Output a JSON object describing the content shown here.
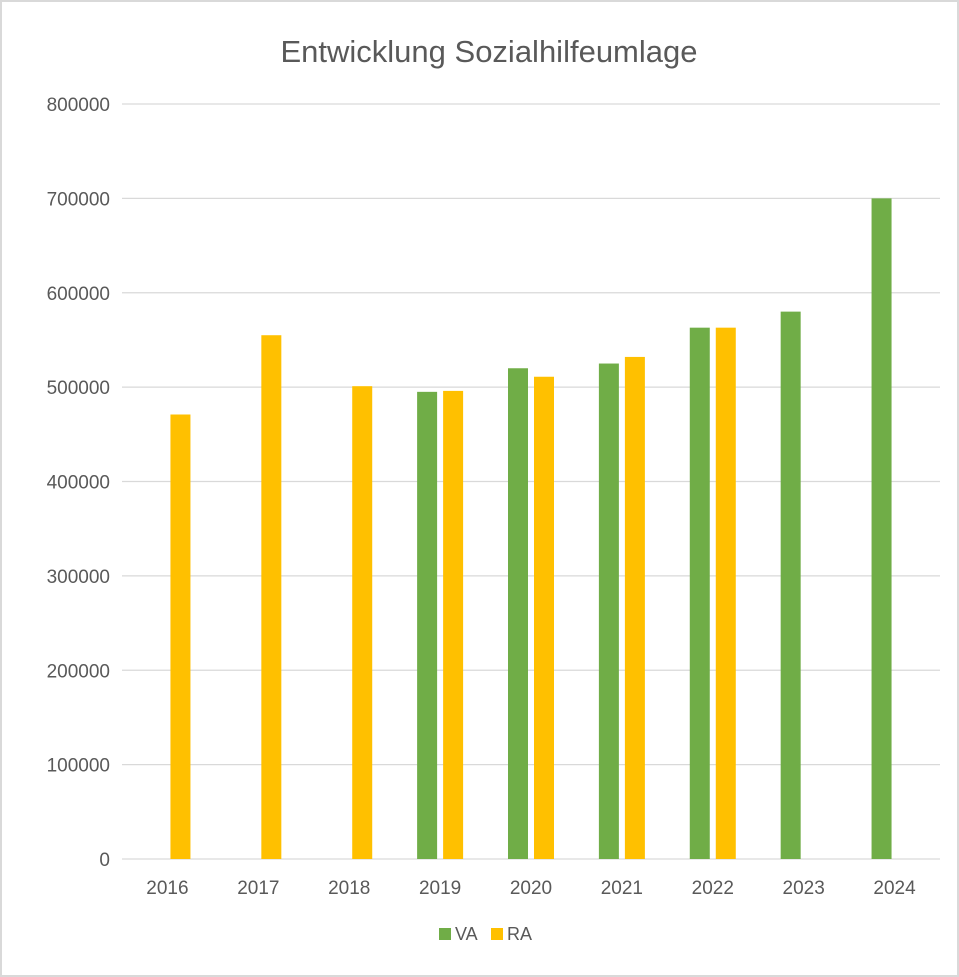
{
  "chart_data": {
    "type": "bar",
    "title": "Entwicklung Sozialhilfeumlage",
    "xlabel": "",
    "ylabel": "",
    "categories": [
      "2016",
      "2017",
      "2018",
      "2019",
      "2020",
      "2021",
      "2022",
      "2023",
      "2024"
    ],
    "series": [
      {
        "name": "VA",
        "color": "#70ad47",
        "values": [
          null,
          null,
          null,
          495000,
          520000,
          525000,
          563000,
          580000,
          700000
        ]
      },
      {
        "name": "RA",
        "color": "#ffc000",
        "values": [
          471000,
          555000,
          501000,
          496000,
          511000,
          532000,
          563000,
          null,
          null
        ]
      }
    ],
    "ylim": [
      0,
      800000
    ],
    "yticks": [
      "0",
      "100000",
      "200000",
      "300000",
      "400000",
      "500000",
      "600000",
      "700000",
      "800000"
    ],
    "grid": true,
    "legend_position": "bottom",
    "gridline_color": "#d9d9d9"
  }
}
